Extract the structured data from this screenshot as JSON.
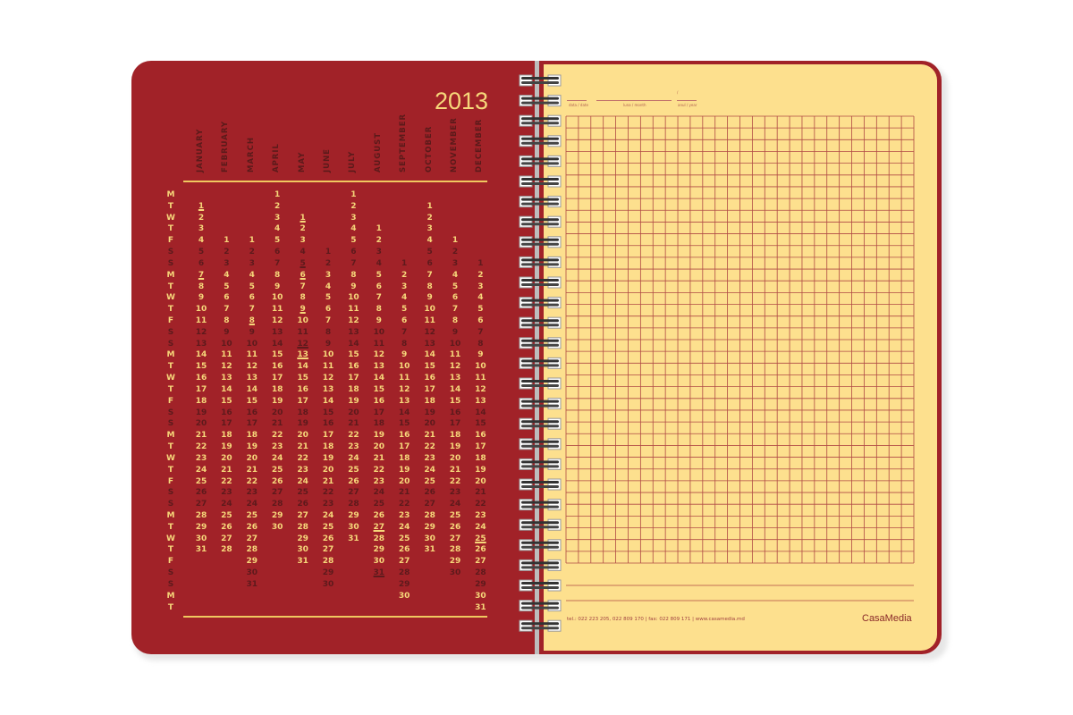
{
  "calendar": {
    "year": 2013,
    "weekday_letters": [
      "M",
      "T",
      "W",
      "T",
      "F",
      "S",
      "S"
    ],
    "months": [
      "JANUARY",
      "FEBRUARY",
      "MARCH",
      "APRIL",
      "MAY",
      "JUNE",
      "JULY",
      "AUGUST",
      "SEPTEMBER",
      "OCTOBER",
      "NOVEMBER",
      "DECEMBER"
    ],
    "underlined_dates": [
      [
        1,
        1
      ],
      [
        1,
        7
      ],
      [
        3,
        8
      ],
      [
        5,
        1
      ],
      [
        5,
        5
      ],
      [
        5,
        6
      ],
      [
        5,
        9
      ],
      [
        5,
        12
      ],
      [
        5,
        13
      ],
      [
        8,
        27
      ],
      [
        8,
        31
      ],
      [
        12,
        25
      ]
    ],
    "colors": {
      "weekday": "#f6d77a",
      "weekend": "#5e1a1c",
      "page": "#a12228"
    }
  },
  "notes_page": {
    "date_label": "data / date",
    "month_label": "luna / month",
    "year_label": "anul / year",
    "slash": "/",
    "footer": "tel.: 022 223 205, 022 809 170 | fax: 022 809 171 | www.casamedia.md",
    "logo": "CasaMedia",
    "colors": {
      "paper": "#fde08e",
      "grid": "#b04a45"
    }
  }
}
